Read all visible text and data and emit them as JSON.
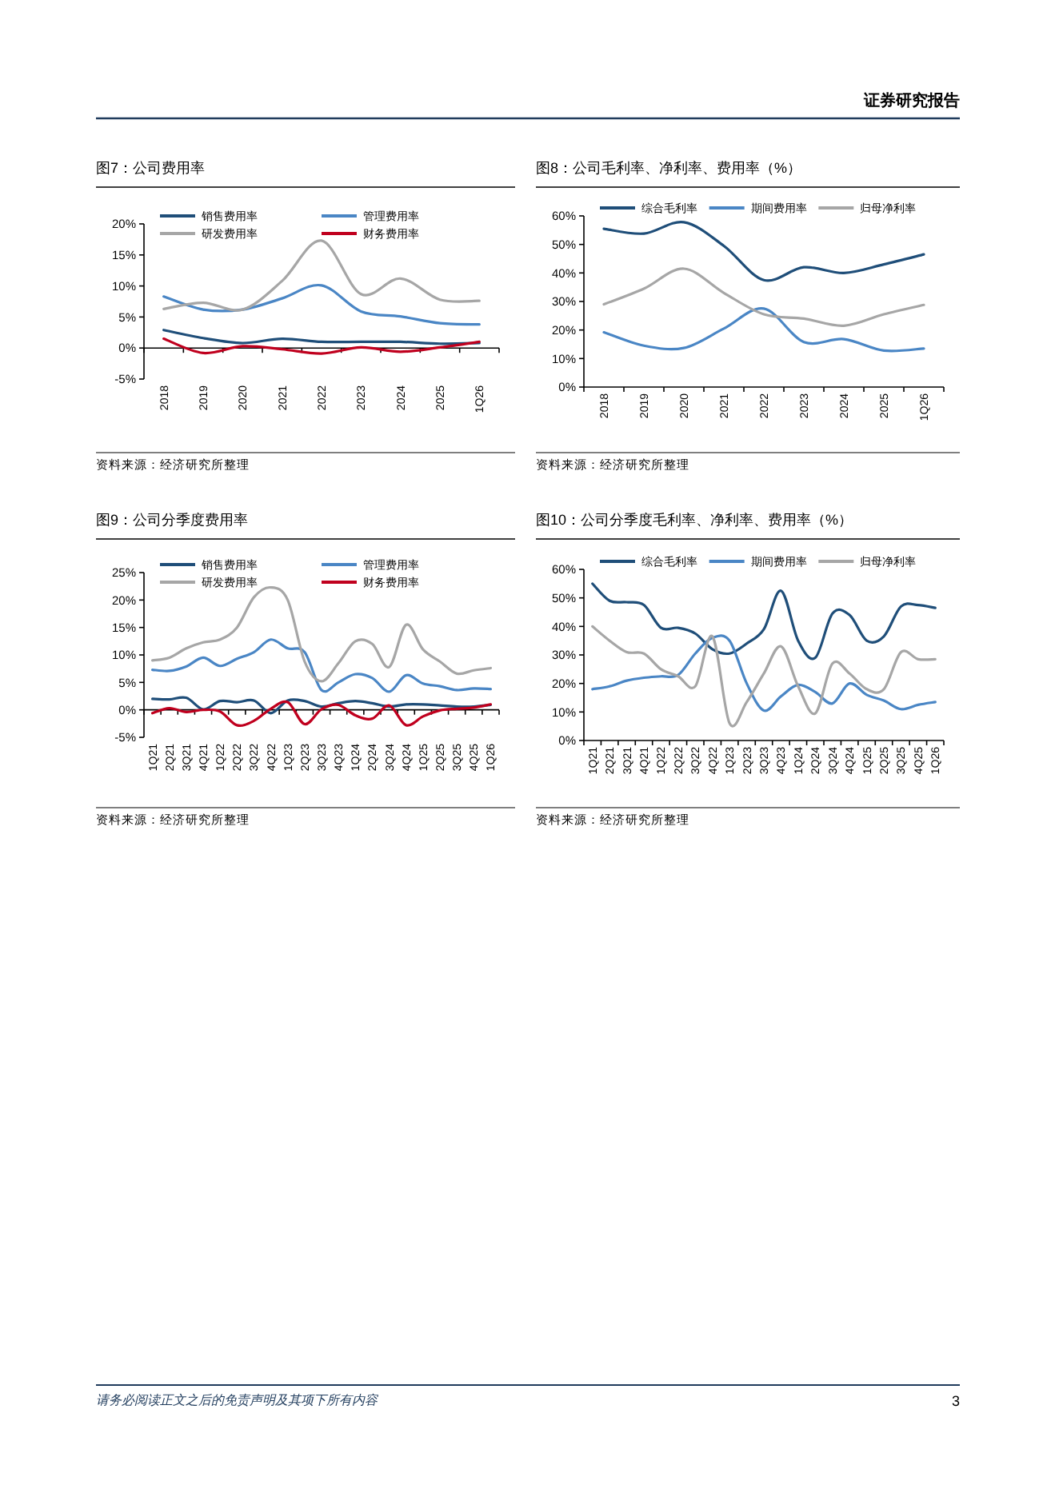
{
  "chart_data": [
    {
      "type": "line",
      "title": "图7：公司费用率",
      "categories": [
        "2018",
        "2019",
        "2020",
        "2021",
        "2022",
        "2023",
        "2024",
        "2025",
        "1Q26"
      ],
      "series": [
        {
          "name": "销售费用率",
          "color": "#1f4e79",
          "values": [
            2.9,
            1.6,
            0.8,
            1.5,
            1.0,
            1.0,
            1.0,
            0.7,
            0.8
          ]
        },
        {
          "name": "管理费用率",
          "color": "#4a86c5",
          "values": [
            8.3,
            6.2,
            6.2,
            8.0,
            10.1,
            5.9,
            5.1,
            4.0,
            3.8
          ]
        },
        {
          "name": "研发费用率",
          "color": "#a6a6a6",
          "values": [
            6.3,
            7.3,
            6.2,
            10.8,
            17.3,
            8.7,
            11.2,
            7.8,
            7.6
          ]
        },
        {
          "name": "财务费用率",
          "color": "#c0001e",
          "values": [
            1.5,
            -0.8,
            0.3,
            -0.2,
            -0.9,
            0.1,
            -0.6,
            0.1,
            1.0
          ]
        }
      ],
      "ylim": [
        -5,
        20
      ],
      "yticks": [
        {
          "value": -5,
          "label": "-5%"
        },
        {
          "value": 0,
          "label": "0%"
        },
        {
          "value": 5,
          "label": "5%"
        },
        {
          "value": 10,
          "label": "10%"
        },
        {
          "value": 15,
          "label": "15%"
        },
        {
          "value": 20,
          "label": "20%"
        }
      ],
      "legend": "top",
      "annotations": [
        "资料来源：经济研究所整理",
        "证券研究报告"
      ]
    },
    {
      "type": "line",
      "title": "图8：公司毛利率、净利率、费用率（%）",
      "categories": [
        "2018",
        "2019",
        "2020",
        "2021",
        "2022",
        "2023",
        "2024",
        "2025",
        "1Q26"
      ],
      "series": [
        {
          "name": "综合毛利率",
          "color": "#1f4e79",
          "values": [
            55.5,
            53.8,
            57.8,
            49.5,
            37.5,
            42,
            40,
            43,
            46.5
          ]
        },
        {
          "name": "期间费用率",
          "color": "#4a86c5",
          "values": [
            19.2,
            14.5,
            13.7,
            20.5,
            27.5,
            15.8,
            16.8,
            12.8,
            13.5
          ]
        },
        {
          "name": "归母净利率",
          "color": "#a6a6a6",
          "values": [
            29,
            34.5,
            41.5,
            33,
            25.5,
            24,
            21.5,
            25.5,
            28.8
          ]
        }
      ],
      "ylim": [
        0,
        60
      ],
      "yticks": [
        {
          "value": 0,
          "label": "0%"
        },
        {
          "value": 10,
          "label": "10%"
        },
        {
          "value": 20,
          "label": "20%"
        },
        {
          "value": 30,
          "label": "30%"
        },
        {
          "value": 40,
          "label": "40%"
        },
        {
          "value": 50,
          "label": "50%"
        },
        {
          "value": 60,
          "label": "60%"
        }
      ],
      "legend": "top",
      "annotations": [
        "资料来源：经济研究所整理"
      ]
    },
    {
      "type": "line",
      "title": "图9：公司分季度费用率",
      "categories": [
        "1Q21",
        "2Q21",
        "3Q21",
        "4Q21",
        "1Q22",
        "2Q22",
        "3Q22",
        "4Q22",
        "1Q23",
        "2Q23",
        "3Q23",
        "4Q23",
        "1Q24",
        "2Q24",
        "3Q24",
        "4Q24",
        "1Q25",
        "2Q25",
        "3Q25",
        "4Q25",
        "1Q26"
      ],
      "series": [
        {
          "name": "销售费用率",
          "color": "#1f4e79",
          "values": [
            2.0,
            1.9,
            2.2,
            0.1,
            1.6,
            1.4,
            1.7,
            -0.6,
            1.7,
            1.6,
            0.6,
            1.2,
            1.6,
            1.2,
            0.6,
            1.0,
            1.0,
            0.8,
            0.6,
            0.6,
            0.9
          ]
        },
        {
          "name": "管理费用率",
          "color": "#4a86c5",
          "values": [
            7.3,
            7.1,
            7.9,
            9.5,
            8.0,
            9.3,
            10.5,
            12.8,
            11.2,
            10.5,
            3.6,
            5.0,
            6.5,
            5.8,
            3.3,
            6.3,
            4.8,
            4.3,
            3.6,
            3.9,
            3.8
          ]
        },
        {
          "name": "研发费用率",
          "color": "#a6a6a6",
          "values": [
            9.0,
            9.5,
            11.2,
            12.3,
            12.8,
            15.0,
            20.5,
            22.3,
            20.0,
            8.8,
            5.2,
            8.5,
            12.5,
            12.0,
            7.8,
            15.5,
            11.0,
            8.8,
            6.6,
            7.2,
            7.6
          ]
        },
        {
          "name": "财务费用率",
          "color": "#c0001e",
          "values": [
            -0.6,
            0.3,
            -0.4,
            0.0,
            -0.3,
            -2.8,
            -2.0,
            0.2,
            1.4,
            -2.6,
            0.1,
            0.9,
            -1.0,
            -1.6,
            0.8,
            -2.8,
            -1.2,
            -0.1,
            0.2,
            0.4,
            1.0
          ]
        }
      ],
      "ylim": [
        -5,
        25
      ],
      "yticks": [
        {
          "value": -5,
          "label": "-5%"
        },
        {
          "value": 0,
          "label": "0%"
        },
        {
          "value": 5,
          "label": "5%"
        },
        {
          "value": 10,
          "label": "10%"
        },
        {
          "value": 15,
          "label": "15%"
        },
        {
          "value": 20,
          "label": "20%"
        },
        {
          "value": 25,
          "label": "25%"
        }
      ],
      "legend": "top",
      "annotations": [
        "资料来源：经济研究所整理"
      ]
    },
    {
      "type": "line",
      "title": "图10：公司分季度毛利率、净利率、费用率（%）",
      "categories": [
        "1Q21",
        "2Q21",
        "3Q21",
        "4Q21",
        "1Q22",
        "2Q22",
        "3Q22",
        "4Q22",
        "1Q23",
        "2Q23",
        "3Q23",
        "4Q23",
        "1Q24",
        "2Q24",
        "3Q24",
        "4Q24",
        "1Q25",
        "2Q25",
        "3Q25",
        "4Q25",
        "1Q26"
      ],
      "series": [
        {
          "name": "综合毛利率",
          "color": "#1f4e79",
          "values": [
            55,
            49,
            48.5,
            47.5,
            39.5,
            39.5,
            37.5,
            32,
            30.5,
            34,
            39,
            52.5,
            35,
            29,
            44.5,
            44,
            35,
            36.5,
            47,
            47.5,
            46.5
          ]
        },
        {
          "name": "期间费用率",
          "color": "#4a86c5",
          "values": [
            18,
            19,
            21,
            22,
            22.5,
            23,
            30.5,
            36,
            35,
            20,
            10.5,
            15.5,
            19.5,
            17,
            13,
            20,
            16,
            14,
            11,
            12.5,
            13.5
          ]
        },
        {
          "name": "归母净利率",
          "color": "#a6a6a6",
          "values": [
            40,
            35,
            31,
            30.5,
            25,
            22.5,
            19,
            36.5,
            6,
            13.5,
            23.5,
            33,
            19,
            9.5,
            27,
            23.5,
            18,
            18,
            31,
            28.5,
            28.5
          ]
        }
      ],
      "ylim": [
        0,
        60
      ],
      "yticks": [
        {
          "value": 0,
          "label": "0%"
        },
        {
          "value": 10,
          "label": "10%"
        },
        {
          "value": 20,
          "label": "20%"
        },
        {
          "value": 30,
          "label": "30%"
        },
        {
          "value": 40,
          "label": "40%"
        },
        {
          "value": 50,
          "label": "50%"
        },
        {
          "value": 60,
          "label": "60%"
        }
      ],
      "legend": "top",
      "annotations": [
        "资料来源：经济研究所整理",
        "请务必阅读正文之后的免责声明及其项下所有内容",
        "3"
      ]
    }
  ]
}
